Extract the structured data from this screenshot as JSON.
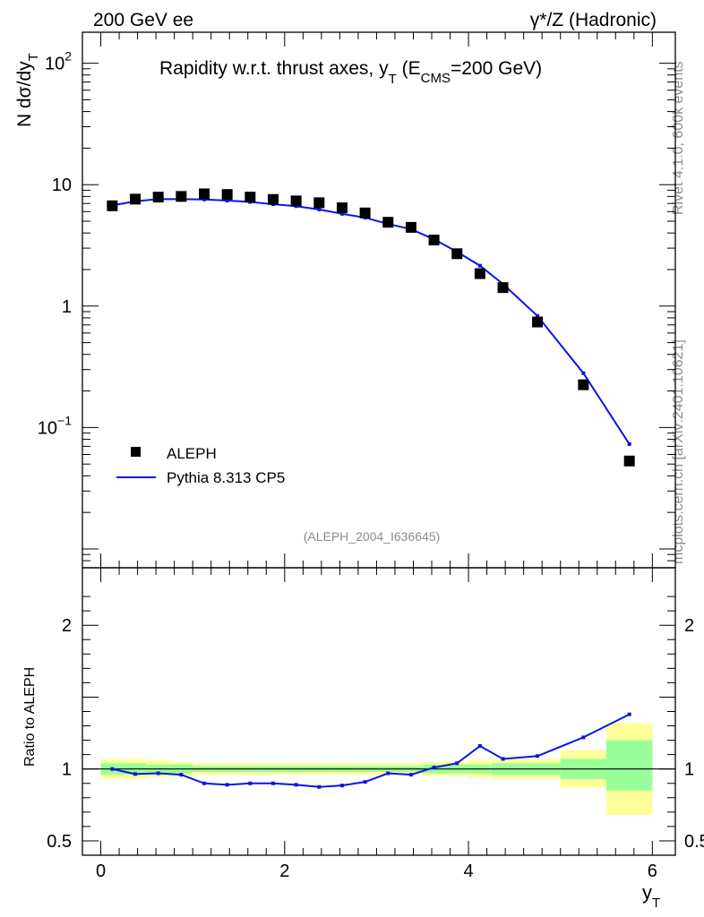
{
  "header": {
    "left": "200 GeV ee",
    "right": "γ*/Z (Hadronic)"
  },
  "side_labels": {
    "rivet": "Rivet 4.1.0,  600k events",
    "mcplots": "mcplots.cern.ch [arXiv:2401.10621]"
  },
  "analysis_id": "(ALEPH_2004_I636645)",
  "colors": {
    "mc": "#0a14e6",
    "data": "#000000",
    "band_outer": "#ffff99",
    "band_inner": "#99ff99"
  },
  "chart_data": [
    {
      "type": "scatter",
      "scale": "log",
      "title": "Rapidity w.r.t. thrust axes, y_T (E_CMS=200 GeV)",
      "title_parts": {
        "main": "Rapidity w.r.t. thrust axes, y",
        "sub_t": "T",
        "open": " (E",
        "sub_cms": "CMS",
        "close": "=200 GeV)"
      },
      "ylabel_parts": {
        "main": "N  dσ/dy",
        "sub": "T"
      },
      "xlim": [
        -0.2,
        6.25
      ],
      "ylim": [
        0.007,
        180
      ],
      "yticks": [
        {
          "v": 0.1,
          "base": "10",
          "exp": "−1"
        },
        {
          "v": 1,
          "label": "1"
        },
        {
          "v": 10,
          "label": "10"
        },
        {
          "v": 100,
          "base": "10",
          "exp": "2"
        }
      ],
      "legend": [
        {
          "label": "ALEPH",
          "marker": "square"
        },
        {
          "label": "Pythia 8.313 CP5",
          "marker": "line"
        }
      ],
      "series": [
        {
          "name": "ALEPH",
          "x": [
            0.125,
            0.375,
            0.625,
            0.875,
            1.125,
            1.375,
            1.625,
            1.875,
            2.125,
            2.375,
            2.625,
            2.875,
            3.125,
            3.375,
            3.625,
            3.875,
            4.125,
            4.375,
            4.75,
            5.25,
            5.75
          ],
          "y": [
            6.7,
            7.6,
            7.9,
            8.0,
            8.4,
            8.3,
            7.9,
            7.55,
            7.35,
            7.1,
            6.45,
            5.85,
            4.9,
            4.45,
            3.5,
            2.7,
            1.85,
            1.42,
            0.74,
            0.225,
            0.053
          ]
        },
        {
          "name": "Pythia 8.313 CP5",
          "x": [
            0.125,
            0.375,
            0.625,
            0.875,
            1.125,
            1.375,
            1.625,
            1.875,
            2.125,
            2.375,
            2.625,
            2.875,
            3.125,
            3.375,
            3.625,
            3.875,
            4.125,
            4.375,
            4.75,
            5.25,
            5.75
          ],
          "y": [
            6.75,
            7.3,
            7.6,
            7.6,
            7.55,
            7.4,
            7.2,
            6.9,
            6.65,
            6.25,
            5.75,
            5.35,
            4.75,
            4.3,
            3.55,
            2.8,
            2.15,
            1.52,
            0.83,
            0.28,
            0.073
          ]
        }
      ]
    },
    {
      "type": "line",
      "ylabel": "Ratio to ALEPH",
      "xlabel_parts": {
        "main": "y",
        "sub": "T"
      },
      "xlim": [
        -0.2,
        6.25
      ],
      "ylim": [
        0.4,
        2.4
      ],
      "xticks": [
        0,
        2,
        4,
        6
      ],
      "yticks": [
        0.5,
        1,
        2
      ],
      "reference": 1,
      "bands": {
        "edges": [
          0,
          0.25,
          0.5,
          0.75,
          1.0,
          1.25,
          1.5,
          1.75,
          2.0,
          2.25,
          2.5,
          2.75,
          3.0,
          3.25,
          3.5,
          3.75,
          4.0,
          4.25,
          4.5,
          5.0,
          5.5,
          6.0
        ],
        "outer": [
          [
            0.93,
            1.07
          ],
          [
            0.93,
            1.07
          ],
          [
            0.94,
            1.06
          ],
          [
            0.95,
            1.05
          ],
          [
            0.96,
            1.04
          ],
          [
            0.96,
            1.04
          ],
          [
            0.96,
            1.04
          ],
          [
            0.96,
            1.04
          ],
          [
            0.96,
            1.04
          ],
          [
            0.96,
            1.04
          ],
          [
            0.96,
            1.04
          ],
          [
            0.96,
            1.04
          ],
          [
            0.96,
            1.04
          ],
          [
            0.96,
            1.04
          ],
          [
            0.95,
            1.05
          ],
          [
            0.95,
            1.05
          ],
          [
            0.94,
            1.06
          ],
          [
            0.93,
            1.07
          ],
          [
            0.93,
            1.07
          ],
          [
            0.87,
            1.13
          ],
          [
            0.68,
            1.32
          ]
        ],
        "inner": [
          [
            0.96,
            1.04
          ],
          [
            0.96,
            1.04
          ],
          [
            0.97,
            1.03
          ],
          [
            0.97,
            1.03
          ],
          [
            0.98,
            1.02
          ],
          [
            0.98,
            1.02
          ],
          [
            0.98,
            1.02
          ],
          [
            0.98,
            1.02
          ],
          [
            0.98,
            1.02
          ],
          [
            0.98,
            1.02
          ],
          [
            0.98,
            1.02
          ],
          [
            0.98,
            1.02
          ],
          [
            0.98,
            1.02
          ],
          [
            0.98,
            1.02
          ],
          [
            0.97,
            1.03
          ],
          [
            0.97,
            1.03
          ],
          [
            0.97,
            1.03
          ],
          [
            0.96,
            1.04
          ],
          [
            0.96,
            1.04
          ],
          [
            0.93,
            1.07
          ],
          [
            0.85,
            1.2
          ]
        ]
      },
      "series": [
        {
          "name": "Pythia 8.313 CP5 / ALEPH",
          "x": [
            0.125,
            0.375,
            0.625,
            0.875,
            1.125,
            1.375,
            1.625,
            1.875,
            2.125,
            2.375,
            2.625,
            2.875,
            3.125,
            3.375,
            3.625,
            3.875,
            4.125,
            4.375,
            4.75,
            5.25,
            5.75
          ],
          "y": [
            1.0,
            0.965,
            0.97,
            0.96,
            0.9,
            0.89,
            0.9,
            0.9,
            0.89,
            0.875,
            0.885,
            0.91,
            0.97,
            0.96,
            1.01,
            1.04,
            1.16,
            1.07,
            1.09,
            1.22,
            1.38
          ]
        }
      ]
    }
  ]
}
